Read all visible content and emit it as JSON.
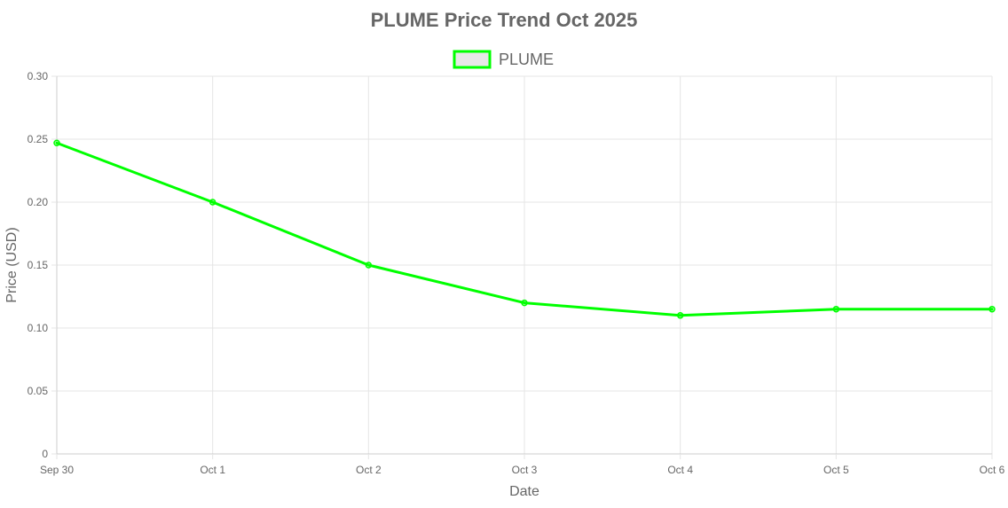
{
  "chart_data": {
    "type": "line",
    "title": "PLUME Price Trend Oct 2025",
    "xlabel": "Date",
    "ylabel": "Price (USD)",
    "categories": [
      "Sep 30",
      "Oct 1",
      "Oct 2",
      "Oct 3",
      "Oct 4",
      "Oct 5",
      "Oct 6"
    ],
    "series": [
      {
        "name": "PLUME",
        "color": "#00ff00",
        "legend_fill": "#e8e8e8",
        "values": [
          0.247,
          0.2,
          0.15,
          0.12,
          0.11,
          0.115,
          0.115
        ]
      }
    ],
    "ylim": [
      0,
      0.3
    ],
    "yticks": [
      {
        "value": 0,
        "label": "0"
      },
      {
        "value": 0.05,
        "label": "0.05"
      },
      {
        "value": 0.1,
        "label": "0.10"
      },
      {
        "value": 0.15,
        "label": "0.15"
      },
      {
        "value": 0.2,
        "label": "0.20"
      },
      {
        "value": 0.25,
        "label": "0.25"
      },
      {
        "value": 0.3,
        "label": "0.30"
      }
    ],
    "grid": true,
    "legend_position": "top-center"
  }
}
